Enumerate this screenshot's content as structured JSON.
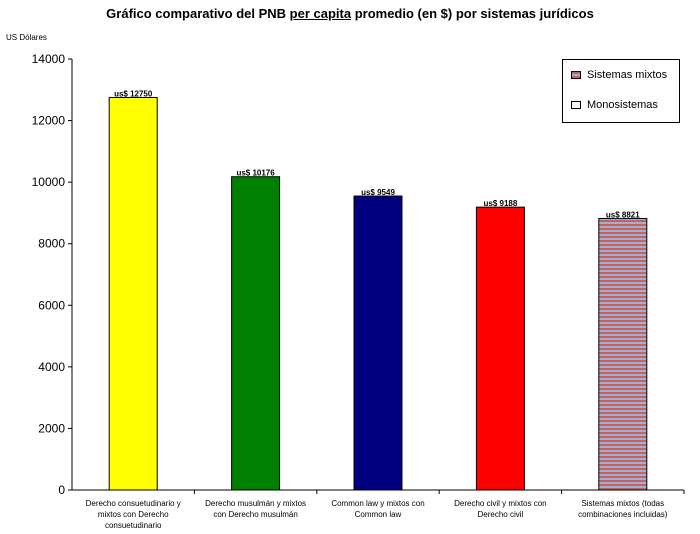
{
  "chart_data": {
    "type": "bar",
    "title_parts": [
      "Gráfico comparativo del PNB ",
      "per capita",
      " promedio (en $) por sistemas jurídicos"
    ],
    "ylabel": "US Dólares",
    "xlabel": "",
    "ylim": [
      0,
      14000
    ],
    "yticks": [
      0,
      2000,
      4000,
      6000,
      8000,
      10000,
      12000,
      14000
    ],
    "grid": false,
    "categories": [
      "Derecho consuetudinario y mixtos con Derecho consuetudinario",
      "Derecho musulmán y mixtos con Derecho musulmán",
      "Common law y mixtos con Common law",
      "Derecho civil y mixtos con Derecho civil",
      "Sistemas mixtos (todas combinaciones incluidas)"
    ],
    "values": [
      12750,
      10176,
      9549,
      9188,
      8821
    ],
    "data_labels": [
      "us$ 12750",
      "us$ 10176",
      "us$ 9549",
      "us$ 9188",
      "us$ 8821"
    ],
    "colors": [
      "#ffff00",
      "#008000",
      "#000080",
      "#ff0000",
      "striped"
    ],
    "legend": {
      "position": "top-right",
      "items": [
        {
          "label": "Sistemas mixtos",
          "style": "striped"
        },
        {
          "label": "Monosistemas",
          "style": "plain"
        }
      ]
    }
  }
}
